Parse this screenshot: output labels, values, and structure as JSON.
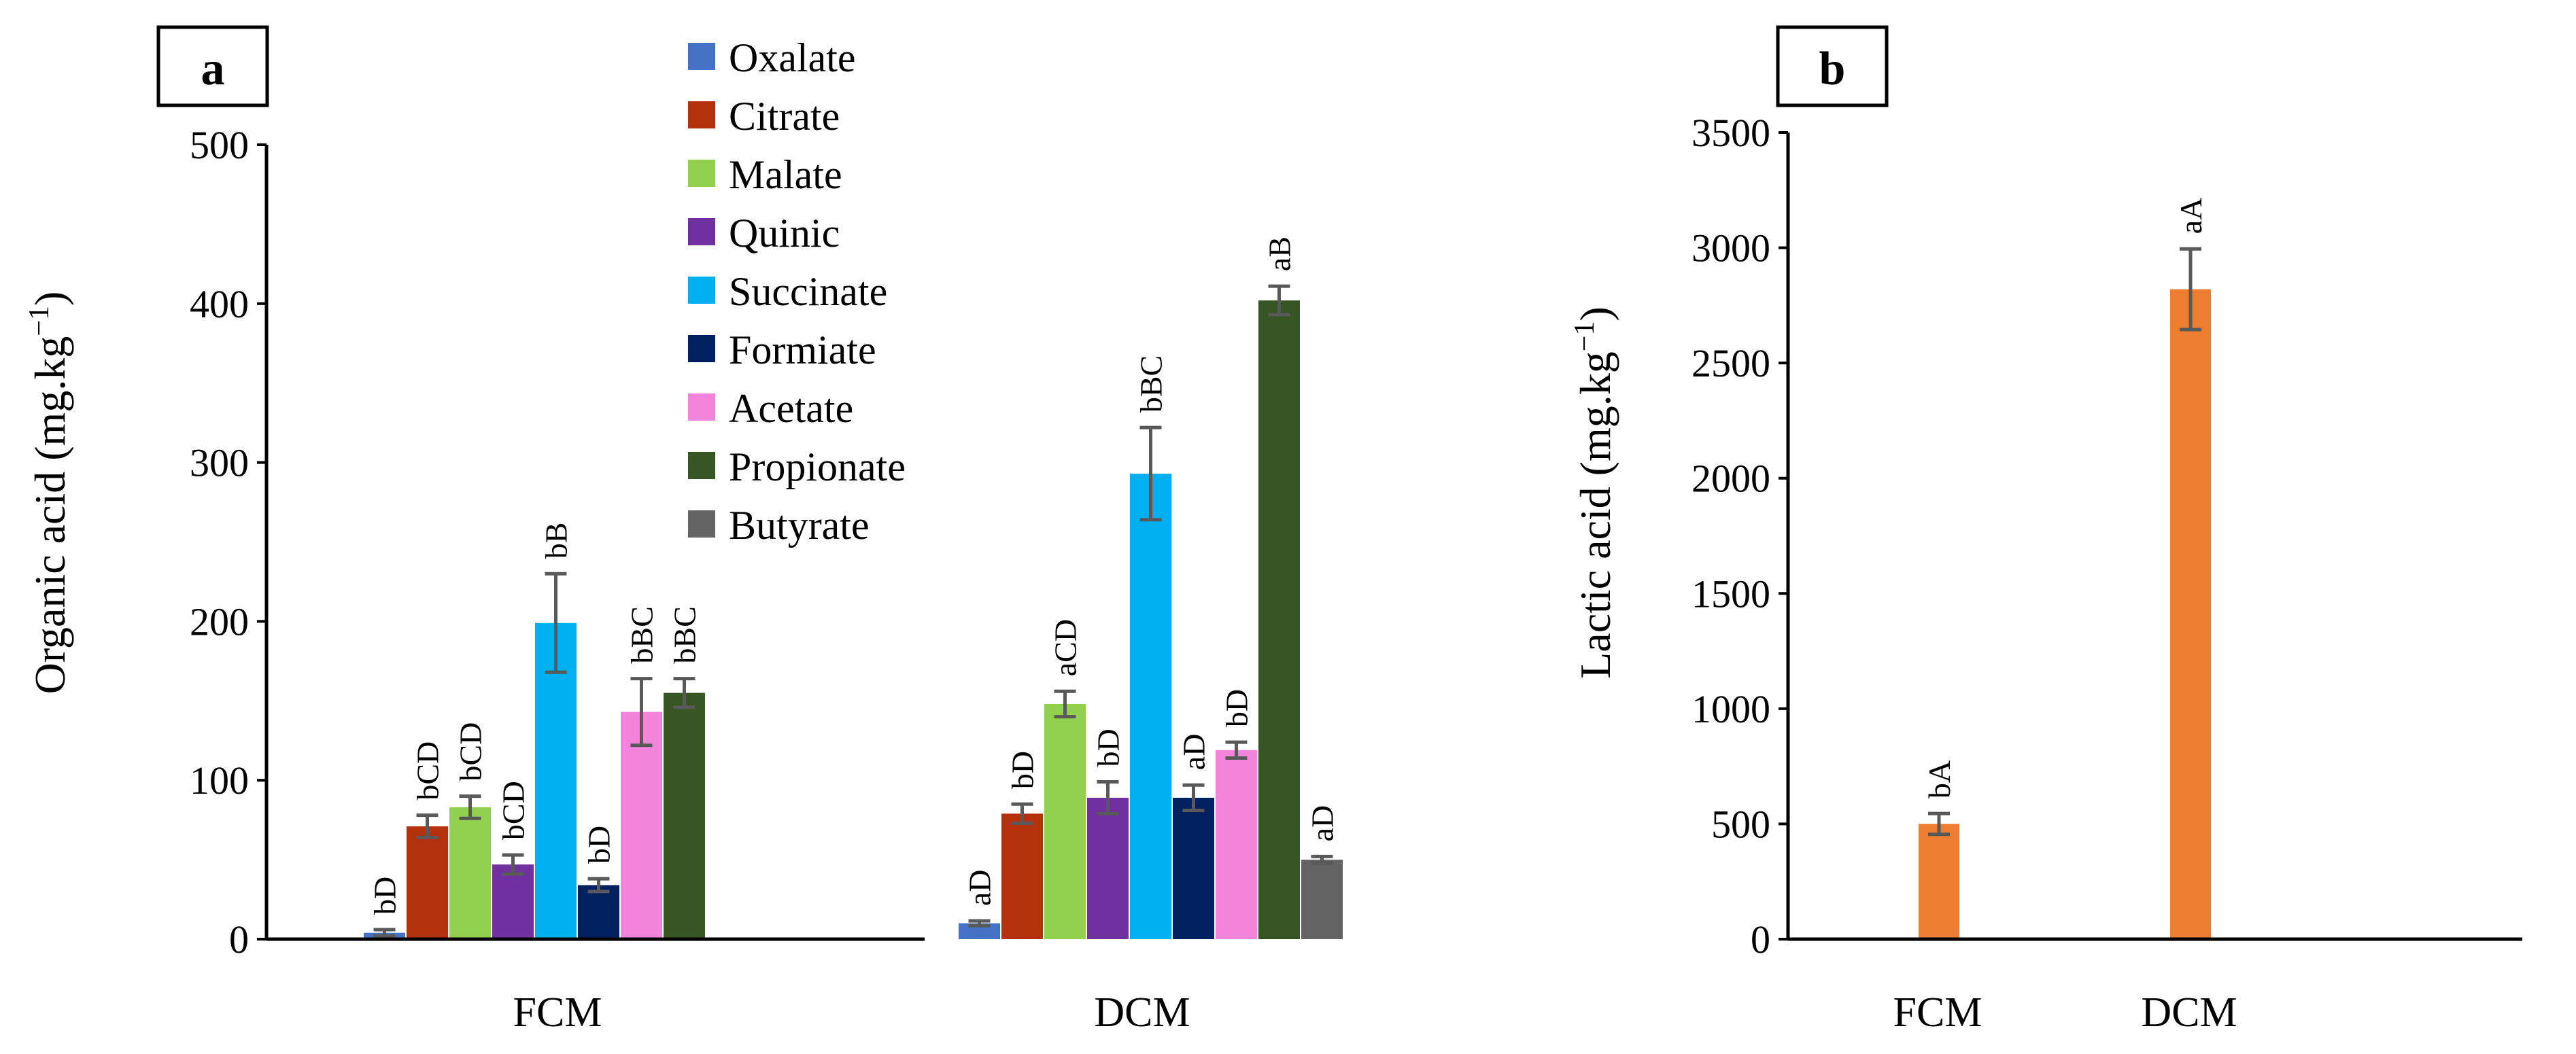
{
  "chart_data": [
    {
      "type": "bar",
      "panel_label": "a",
      "ylabel": "Organic acid (mg.kg",
      "ylabel_sup": "−1",
      "ylabel_close": ")",
      "ylim": [
        0,
        500
      ],
      "yticks": [
        0,
        100,
        200,
        300,
        400,
        500
      ],
      "ytick_labels": [
        "0",
        "100",
        "200",
        "300",
        "400",
        "500"
      ],
      "categories": [
        "FCM",
        "DCM"
      ],
      "legend_position": "top-center",
      "series": [
        {
          "name": "Oxalate",
          "color": "#4472C4",
          "values": [
            4,
            10
          ],
          "errors": [
            2,
            1.5
          ],
          "labels": [
            "bD",
            "aD"
          ]
        },
        {
          "name": "Citrate",
          "color": "#B5310D",
          "values": [
            71,
            79
          ],
          "errors": [
            7,
            6
          ],
          "labels": [
            "bCD",
            "bD"
          ]
        },
        {
          "name": "Malate",
          "color": "#92D050",
          "values": [
            83,
            148
          ],
          "errors": [
            7,
            8
          ],
          "labels": [
            "bCD",
            "aCD"
          ]
        },
        {
          "name": "Quinic",
          "color": "#7030A0",
          "values": [
            47,
            89
          ],
          "errors": [
            6,
            10
          ],
          "labels": [
            "bCD",
            "bD"
          ]
        },
        {
          "name": "Succinate",
          "color": "#00B0F0",
          "values": [
            199,
            293
          ],
          "errors": [
            31,
            29
          ],
          "labels": [
            "bB",
            "bBC"
          ]
        },
        {
          "name": "Formiate",
          "color": "#002060",
          "values": [
            34,
            89
          ],
          "errors": [
            4,
            8
          ],
          "labels": [
            "bD",
            "aD"
          ]
        },
        {
          "name": "Acetate",
          "color": "#F284DC",
          "values": [
            143,
            119
          ],
          "errors": [
            21,
            5
          ],
          "labels": [
            "bBC",
            "bD"
          ]
        },
        {
          "name": "Propionate",
          "color": "#375623",
          "values": [
            155,
            402
          ],
          "errors": [
            9,
            9
          ],
          "labels": [
            "bBC",
            "aB"
          ]
        },
        {
          "name": "Butyrate",
          "color": "#636363",
          "values": [
            0,
            50
          ],
          "errors": [
            0,
            2
          ],
          "labels": [
            "",
            "aD"
          ]
        }
      ]
    },
    {
      "type": "bar",
      "panel_label": "b",
      "ylabel": "Lactic acid (mg.kg",
      "ylabel_sup": "−1",
      "ylabel_close": ")",
      "ylim": [
        0,
        3500
      ],
      "yticks": [
        0,
        500,
        1000,
        1500,
        2000,
        2500,
        3000,
        3500
      ],
      "ytick_labels": [
        "0",
        "500",
        "1000",
        "1500",
        "2000",
        "2500",
        "3000",
        "3500"
      ],
      "categories": [
        "FCM",
        "DCM"
      ],
      "series": [
        {
          "name": "Lactic acid",
          "color": "#ED7D31",
          "values": [
            500,
            2820
          ],
          "errors": [
            45,
            175
          ],
          "labels": [
            "bA",
            "aA"
          ]
        }
      ]
    }
  ]
}
